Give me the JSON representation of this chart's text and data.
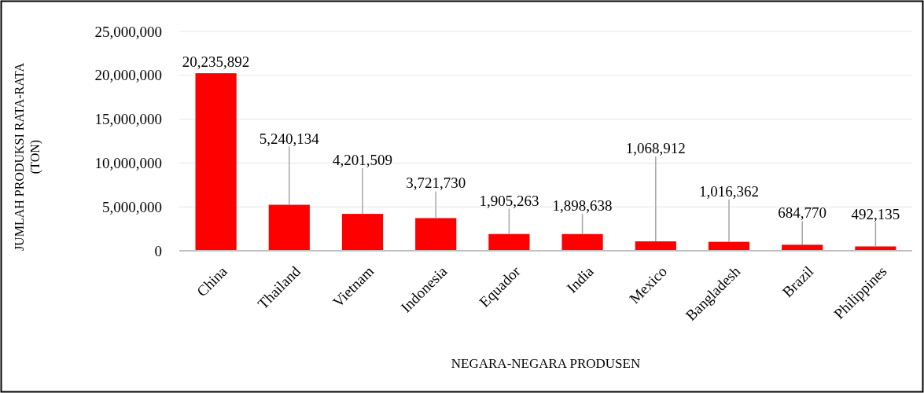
{
  "chart_data": {
    "type": "bar",
    "xlabel": "NEGARA-NEGARA PRODUSEN",
    "ylabel": "JUMLAH PRODUKSI RATA-RATA (TON)",
    "categories": [
      "China",
      "Thailand",
      "Vietnam",
      "Indonesia",
      "Equador",
      "India",
      "Mexico",
      "Bangladesh",
      "Brazil",
      "Philippines"
    ],
    "values": [
      20235892,
      5240134,
      4201509,
      3721730,
      1905263,
      1898638,
      1068912,
      1016362,
      684770,
      492135
    ],
    "color": "#ff0000",
    "ylim": [
      0,
      25000000
    ],
    "yticks": [
      {
        "value": 0,
        "label": "0"
      },
      {
        "value": 5000000,
        "label": "5,000,000"
      },
      {
        "value": 10000000,
        "label": "10,000,000"
      },
      {
        "value": 15000000,
        "label": "15,000,000"
      },
      {
        "value": 20000000,
        "label": "20,000,000"
      },
      {
        "value": 25000000,
        "label": "25,000,000"
      }
    ],
    "value_labels": [
      "20,235,892",
      "5,240,134",
      "4,201,509",
      "3,721,730",
      "1,905,263",
      "1,898,638",
      "1,068,912",
      "1,016,362",
      "684,770",
      "492,135"
    ],
    "grid": "y"
  }
}
